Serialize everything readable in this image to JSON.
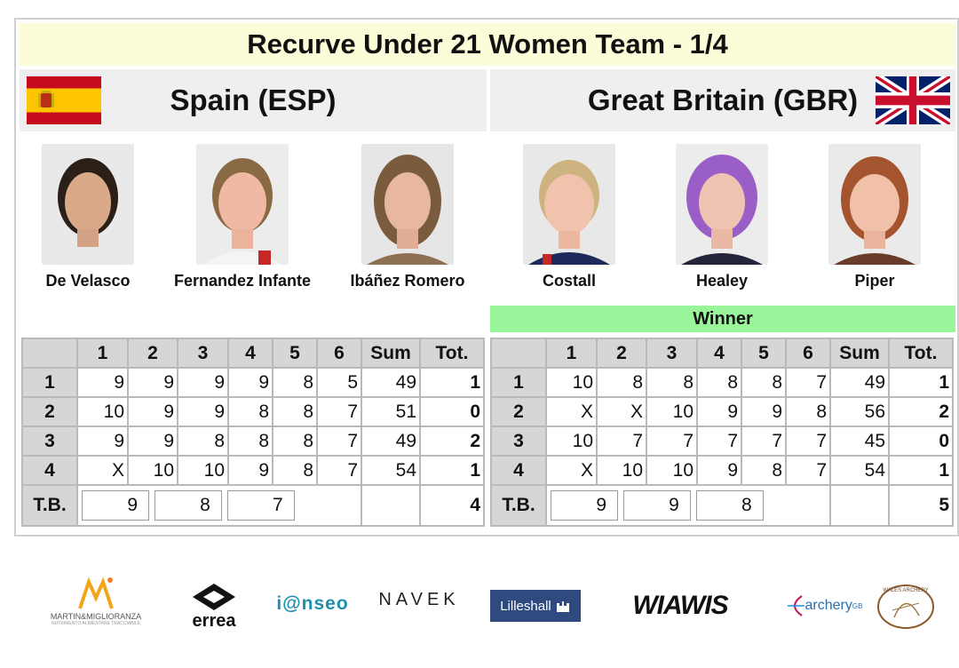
{
  "title": "Recurve Under 21 Women Team - 1/4",
  "teams": {
    "left": {
      "name": "Spain (ESP)",
      "flag": "spain-flag"
    },
    "right": {
      "name": "Great Britain (GBR)",
      "flag": "uk-flag"
    }
  },
  "athletes": {
    "left": [
      "De Velasco",
      "Fernandez Infante",
      "Ibáñez Romero"
    ],
    "right": [
      "Costall",
      "Healey",
      "Piper"
    ]
  },
  "winner_label": "Winner",
  "table_headers": [
    "",
    "1",
    "2",
    "3",
    "4",
    "5",
    "6",
    "Sum",
    "Tot."
  ],
  "scores": {
    "left": {
      "rows": [
        {
          "end": "1",
          "arrows": [
            "9",
            "9",
            "9",
            "9",
            "8",
            "5"
          ],
          "sum": "49",
          "tot": "1"
        },
        {
          "end": "2",
          "arrows": [
            "10",
            "9",
            "9",
            "8",
            "8",
            "7"
          ],
          "sum": "51",
          "tot": "0"
        },
        {
          "end": "3",
          "arrows": [
            "9",
            "9",
            "8",
            "8",
            "8",
            "7"
          ],
          "sum": "49",
          "tot": "2"
        },
        {
          "end": "4",
          "arrows": [
            "X",
            "10",
            "10",
            "9",
            "8",
            "7"
          ],
          "sum": "54",
          "tot": "1"
        }
      ],
      "tb_label": "T.B.",
      "tb": [
        "9",
        "8",
        "7"
      ],
      "tb_tot": "4"
    },
    "right": {
      "rows": [
        {
          "end": "1",
          "arrows": [
            "10",
            "8",
            "8",
            "8",
            "8",
            "7"
          ],
          "sum": "49",
          "tot": "1"
        },
        {
          "end": "2",
          "arrows": [
            "X",
            "X",
            "10",
            "9",
            "9",
            "8"
          ],
          "sum": "56",
          "tot": "2"
        },
        {
          "end": "3",
          "arrows": [
            "10",
            "7",
            "7",
            "7",
            "7",
            "7"
          ],
          "sum": "45",
          "tot": "0"
        },
        {
          "end": "4",
          "arrows": [
            "X",
            "10",
            "10",
            "9",
            "8",
            "7"
          ],
          "sum": "54",
          "tot": "1"
        }
      ],
      "tb_label": "T.B.",
      "tb": [
        "9",
        "9",
        "8"
      ],
      "tb_tot": "5"
    }
  },
  "sponsors": {
    "martin": {
      "name": "MARTIN&MIGLIORANZA",
      "tagline": "NUTRIMENTO ALIMENTARE TRACCIABILE"
    },
    "errea": "errea",
    "ianseo": "i@nseo",
    "navek": "NAVEK",
    "lilleshall": "Lilleshall",
    "wiawis": "WIAWIS",
    "archery_gb": "archery",
    "archery_gb_sup": "GB",
    "wales": "WALES ARCHERY"
  },
  "colors": {
    "title_bg": "#fdfcd9",
    "team_bg": "#efefef",
    "winner_bg": "#99f59a",
    "header_bg": "#d6d6d6"
  }
}
